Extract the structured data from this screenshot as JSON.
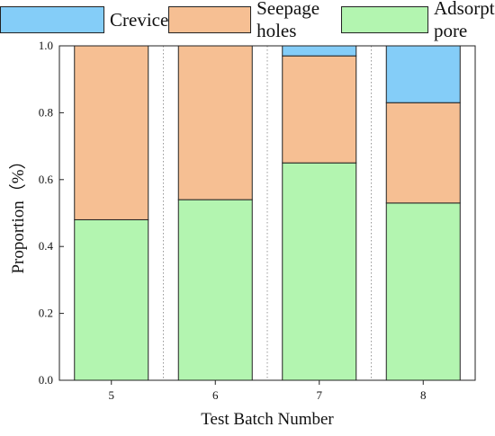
{
  "chart_data": {
    "type": "bar",
    "stacked": true,
    "categories": [
      "5",
      "6",
      "7",
      "8"
    ],
    "series": [
      {
        "name": "Adsorption pore",
        "color": "#b3f5b0",
        "values": [
          0.48,
          0.54,
          0.65,
          0.53
        ]
      },
      {
        "name": "Seepage holes",
        "color": "#f6bf93",
        "values": [
          0.52,
          0.46,
          0.32,
          0.3
        ]
      },
      {
        "name": "Crevice",
        "color": "#84cdf8",
        "values": [
          0.0,
          0.0,
          0.03,
          0.17
        ]
      }
    ],
    "legend_order": [
      "Crevice",
      "Seepage holes",
      "Adsorption pore"
    ],
    "legend_placement": "top",
    "xlabel": "Test Batch Number",
    "ylabel": "Proportion（%）",
    "ylim": [
      0,
      1.0
    ],
    "yticks": [
      "0.0",
      "0.2",
      "0.4",
      "0.6",
      "0.8",
      "1.0"
    ],
    "grid": "vertical dotted separators between categories"
  }
}
